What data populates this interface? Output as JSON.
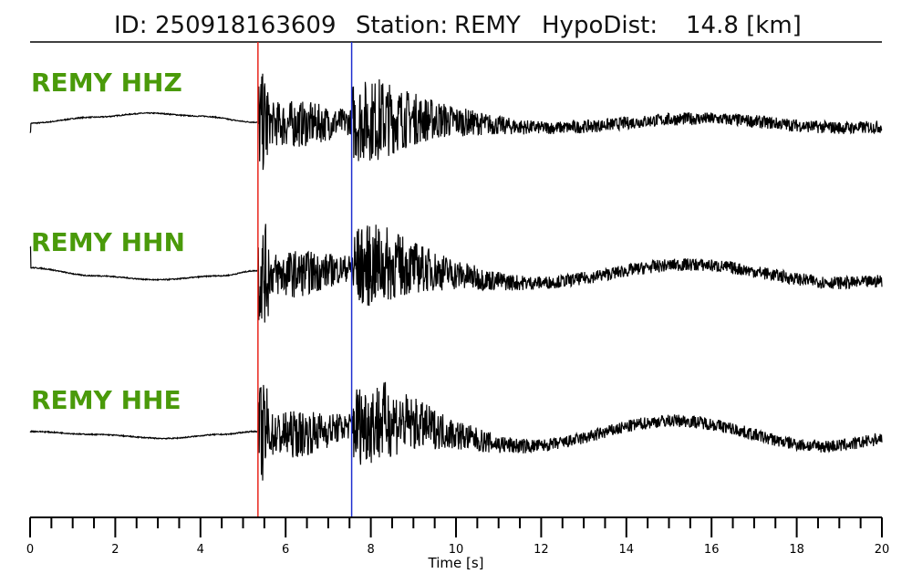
{
  "title": {
    "id_label": "ID:",
    "id_value": "250918163609",
    "station_label": "Station:",
    "station_value": "REMY",
    "dist_label": "HypoDist:",
    "dist_value": "14.8 [km]"
  },
  "colors": {
    "trace": "#000000",
    "label": "#4a9a0a",
    "p_pick": "#e8261c",
    "s_pick": "#1f2fd0",
    "axis": "#000000"
  },
  "chart_data": {
    "type": "line",
    "x_axis": {
      "label": "Time [s]",
      "range": [
        0,
        20
      ],
      "major_ticks": [
        0,
        2,
        4,
        6,
        8,
        10,
        12,
        14,
        16,
        18,
        20
      ],
      "minor_tick_step": 0.5
    },
    "picks": [
      {
        "phase": "P",
        "time": 5.35
      },
      {
        "phase": "S",
        "time": 7.55
      }
    ],
    "series": [
      {
        "name": "REMY HHZ",
        "envelope": {
          "pre_event": [
            [
              0,
              0
            ],
            [
              1.5,
              0.3
            ],
            [
              2.8,
              0.5
            ],
            [
              4,
              0.35
            ],
            [
              5.3,
              0.05
            ]
          ],
          "coda_max_amp": 1.0,
          "coda_end": 20
        }
      },
      {
        "name": "REMY HHN",
        "envelope": {
          "pre_event": [
            [
              0,
              0.3
            ],
            [
              1.5,
              -0.1
            ],
            [
              3,
              -0.3
            ],
            [
              4.5,
              -0.1
            ],
            [
              5.3,
              0.15
            ]
          ],
          "coda_max_amp": 1.0,
          "coda_end": 20
        }
      },
      {
        "name": "REMY HHE",
        "envelope": {
          "pre_event": [
            [
              0,
              0.1
            ],
            [
              1.5,
              -0.05
            ],
            [
              3.2,
              -0.25
            ],
            [
              4.5,
              -0.05
            ],
            [
              5.3,
              0.1
            ]
          ],
          "coda_max_amp": 1.0,
          "coda_end": 20
        }
      }
    ]
  }
}
